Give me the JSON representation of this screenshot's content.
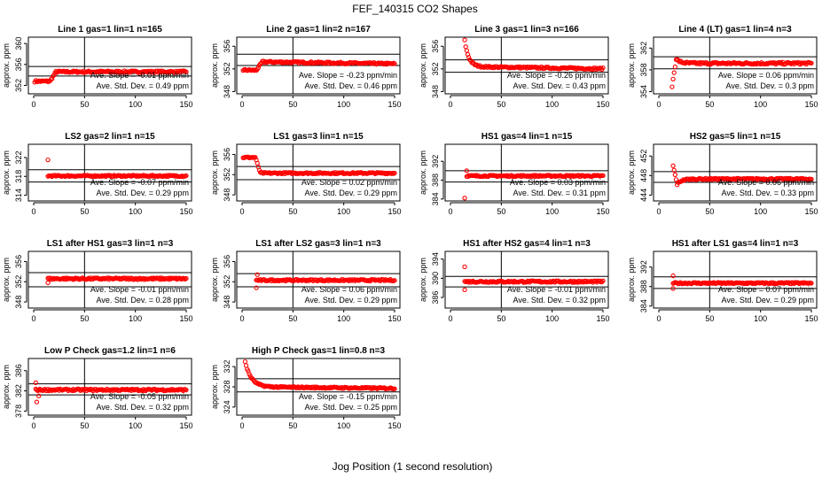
{
  "figure": {
    "title": "FEF_140315  CO2 Shapes",
    "xlabel": "Jog Position (1 second resolution)",
    "point_color": "#ff0000"
  },
  "chart_data": [
    {
      "type": "scatter",
      "title": "Line 1 gas=1 lin=1 n=165",
      "ylabel": "approx. ppm",
      "xlim": [
        0,
        150
      ],
      "xticks": [
        0,
        50,
        100,
        150
      ],
      "ylim": [
        350.4,
        361.2
      ],
      "yticks": [
        352,
        356,
        360
      ],
      "hlines": [
        353.8,
        355.6
      ],
      "slope": "Ave. Slope =  -0.01  ppm/min",
      "sd": "Ave. Std. Dev. =  0.49  ppm",
      "shape": {
        "kind": "step_up",
        "y0": 352.8,
        "y1": 354.6,
        "x_start": 1,
        "x_end": 22,
        "noise": 0.18
      }
    },
    {
      "type": "scatter",
      "title": "Line 2 gas=1 lin=2 n=167",
      "ylabel": "approx. ppm",
      "xlim": [
        0,
        150
      ],
      "xticks": [
        0,
        50,
        100,
        150
      ],
      "ylim": [
        347.6,
        357.6
      ],
      "yticks": [
        348,
        352,
        356
      ],
      "hlines": [
        352.6,
        354.6
      ],
      "slope": "Ave. Slope =  -0.23  ppm/min",
      "sd": "Ave. Std. Dev. =  0.46  ppm",
      "shape": {
        "kind": "step_up",
        "y0": 351.8,
        "y1": 353.3,
        "x_start": 1,
        "x_end": 20,
        "noise": 0.15,
        "drift": -0.4
      }
    },
    {
      "type": "scatter",
      "title": "Line 3 gas=1 lin=3 n=166",
      "ylabel": "approx. ppm",
      "xlim": [
        0,
        150
      ],
      "xticks": [
        0,
        50,
        100,
        150
      ],
      "ylim": [
        347.6,
        357.6
      ],
      "yticks": [
        348,
        352,
        356
      ],
      "hlines": [
        351.4,
        353.6
      ],
      "slope": "Ave. Slope =  -0.26  ppm/min",
      "sd": "Ave. Std. Dev. =  0.43  ppm",
      "shape": {
        "kind": "decay",
        "x_start": 14,
        "y_peak": 357.0,
        "y_end": 352.4,
        "tau": 4,
        "noise": 0.15,
        "drift": -0.4
      }
    },
    {
      "type": "scatter",
      "title": "Line 4 (LT) gas=1 lin=4 n=3",
      "ylabel": "approx. ppm",
      "xlim": [
        0,
        150
      ],
      "xticks": [
        0,
        50,
        100,
        150
      ],
      "ylim": [
        353.6,
        364.0
      ],
      "yticks": [
        354,
        358,
        362
      ],
      "hlines": [
        358.2,
        360.4
      ],
      "slope": "Ave. Slope =  0.06  ppm/min",
      "sd": "Ave. Std. Dev. =  0.3  ppm",
      "shape": {
        "kind": "rise",
        "x_start": 13,
        "y_low": 355.0,
        "y_peak": 360.0,
        "y_end": 359.2,
        "noise": 0.2
      }
    },
    {
      "type": "scatter",
      "title": "LS2 gas=2 lin=1 n=15",
      "ylabel": "approx. ppm",
      "xlim": [
        0,
        150
      ],
      "xticks": [
        0,
        50,
        100,
        150
      ],
      "ylim": [
        312.8,
        324.8
      ],
      "yticks": [
        314,
        318,
        322
      ],
      "hlines": [
        316.8,
        319.4
      ],
      "slope": "Ave. Slope =  -0.07  ppm/min",
      "sd": "Ave. Std. Dev. =  0.29  ppm",
      "shape": {
        "kind": "flat",
        "x_start": 14,
        "y": 318.1,
        "outliers": [
          [
            14,
            321.5
          ]
        ],
        "noise": 0.15
      }
    },
    {
      "type": "scatter",
      "title": "LS1 gas=3 lin=1 n=15",
      "ylabel": "approx. ppm",
      "xlim": [
        0,
        150
      ],
      "xticks": [
        0,
        50,
        100,
        150
      ],
      "ylim": [
        346.8,
        358.0
      ],
      "yticks": [
        348,
        352,
        356
      ],
      "hlines": [
        351.0,
        353.6
      ],
      "slope": "Ave. Slope =  0.02  ppm/min",
      "sd": "Ave. Std. Dev. =  0.29  ppm",
      "shape": {
        "kind": "step_down",
        "x_start": 1,
        "x_end": 18,
        "y0": 355.4,
        "y1": 352.3,
        "noise": 0.15
      }
    },
    {
      "type": "scatter",
      "title": "HS1 gas=4 lin=1 n=15",
      "ylabel": "approx. ppm",
      "xlim": [
        0,
        150
      ],
      "xticks": [
        0,
        50,
        100,
        150
      ],
      "ylim": [
        383.6,
        395.6
      ],
      "yticks": [
        384,
        388,
        392
      ],
      "hlines": [
        387.6,
        390.0
      ],
      "slope": "Ave. Slope =  0.03  ppm/min",
      "sd": "Ave. Std. Dev. =  0.31  ppm",
      "shape": {
        "kind": "flat",
        "x_start": 16,
        "y": 388.9,
        "outliers": [
          [
            14,
            384.2
          ],
          [
            16,
            390.0
          ]
        ],
        "noise": 0.15
      }
    },
    {
      "type": "scatter",
      "title": "HS2 gas=5 lin=1 n=15",
      "ylabel": "approx. ppm",
      "xlim": [
        0,
        150
      ],
      "xticks": [
        0,
        50,
        100,
        150
      ],
      "ylim": [
        442.8,
        454.4
      ],
      "yticks": [
        444,
        448,
        452
      ],
      "hlines": [
        446.6,
        448.8
      ],
      "slope": "Ave. Slope =  0.06  ppm/min",
      "sd": "Ave. Std. Dev. =  0.33  ppm",
      "shape": {
        "kind": "rise",
        "x_start": 14,
        "y_low": 450.0,
        "y_peak": 446.2,
        "y_end": 447.3,
        "noise": 0.15,
        "dip": true
      }
    },
    {
      "type": "scatter",
      "title": "LS1 after HS1 gas=3 lin=1 n=3",
      "ylabel": "approx. ppm",
      "xlim": [
        0,
        150
      ],
      "xticks": [
        0,
        50,
        100,
        150
      ],
      "ylim": [
        346.8,
        358.0
      ],
      "yticks": [
        348,
        352,
        356
      ],
      "hlines": [
        351.0,
        353.8
      ],
      "slope": "Ave. Slope =  -0.01  ppm/min",
      "sd": "Ave. Std. Dev. =  0.28  ppm",
      "shape": {
        "kind": "flat",
        "x_start": 14,
        "y": 352.6,
        "outliers": [
          [
            14,
            351.8
          ]
        ],
        "noise": 0.18
      }
    },
    {
      "type": "scatter",
      "title": "LS1 after LS2 gas=3 lin=1 n=3",
      "ylabel": "approx. ppm",
      "xlim": [
        0,
        150
      ],
      "xticks": [
        0,
        50,
        100,
        150
      ],
      "ylim": [
        346.8,
        358.0
      ],
      "yticks": [
        348,
        352,
        356
      ],
      "hlines": [
        351.0,
        353.6
      ],
      "slope": "Ave. Slope =  0.06  ppm/min",
      "sd": "Ave. Std. Dev. =  0.29  ppm",
      "shape": {
        "kind": "flat",
        "x_start": 14,
        "y": 352.3,
        "outliers": [
          [
            14,
            350.8
          ],
          [
            15,
            353.4
          ]
        ],
        "noise": 0.16
      }
    },
    {
      "type": "scatter",
      "title": "HS1 after HS2 gas=4 lin=1 n=3",
      "ylabel": "approx. ppm",
      "xlim": [
        0,
        150
      ],
      "xticks": [
        0,
        50,
        100,
        150
      ],
      "ylim": [
        383.8,
        395.6
      ],
      "yticks": [
        386,
        390,
        394
      ],
      "hlines": [
        388.2,
        390.4
      ],
      "slope": "Ave. Slope =  -0.01  ppm/min",
      "sd": "Ave. Std. Dev. =  0.32  ppm",
      "shape": {
        "kind": "flat",
        "x_start": 14,
        "y": 389.3,
        "outliers": [
          [
            14,
            392.4
          ],
          [
            14,
            387.6
          ]
        ],
        "noise": 0.18
      }
    },
    {
      "type": "scatter",
      "title": "HS1 after LS1 gas=4 lin=1 n=3",
      "ylabel": "approx. ppm",
      "xlim": [
        0,
        150
      ],
      "xticks": [
        0,
        50,
        100,
        150
      ],
      "ylim": [
        383.6,
        395.2
      ],
      "yticks": [
        384,
        388,
        392
      ],
      "hlines": [
        387.6,
        390.0
      ],
      "slope": "Ave. Slope =  0.07  ppm/min",
      "sd": "Ave. Std. Dev. =  0.29  ppm",
      "shape": {
        "kind": "flat",
        "x_start": 14,
        "y": 388.7,
        "outliers": [
          [
            14,
            390.2
          ],
          [
            14,
            387.6
          ]
        ],
        "noise": 0.16
      }
    },
    {
      "type": "scatter",
      "title": "Low P Check gas=1.2 lin=1 n=6",
      "ylabel": "approx. ppm",
      "xlim": [
        0,
        150
      ],
      "xticks": [
        0,
        50,
        100,
        150
      ],
      "ylim": [
        377.2,
        388.4
      ],
      "yticks": [
        378,
        382,
        386
      ],
      "hlines": [
        381.2,
        383.4
      ],
      "slope": "Ave. Slope =  -0.05  ppm/min",
      "sd": "Ave. Std. Dev. =  0.32  ppm",
      "shape": {
        "kind": "flat",
        "x_start": 2,
        "y": 382.2,
        "outliers": [
          [
            2,
            383.6
          ],
          [
            3,
            379.8
          ],
          [
            5,
            381.0
          ]
        ],
        "noise": 0.18
      }
    },
    {
      "type": "scatter",
      "title": "High P Check gas=1 lin=0.8 n=3",
      "ylabel": "approx. ppm",
      "xlim": [
        0,
        150
      ],
      "xticks": [
        0,
        50,
        100,
        150
      ],
      "ylim": [
        322.4,
        333.6
      ],
      "yticks": [
        324,
        328,
        332
      ],
      "hlines": [
        327.0,
        329.6
      ],
      "slope": "Ave. Slope =  -0.15  ppm/min",
      "sd": "Ave. Std. Dev. =  0.25  ppm",
      "shape": {
        "kind": "decay",
        "x_start": 3,
        "y_peak": 333.0,
        "y_end": 328.0,
        "tau": 6,
        "noise": 0.15,
        "drift": -0.3
      }
    }
  ]
}
